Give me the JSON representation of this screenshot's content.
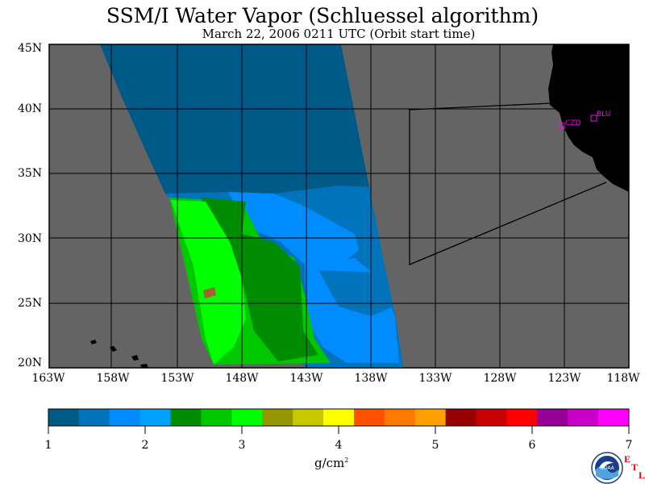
{
  "title": "SSM/I Water Vapor (Schluessel algorithm)",
  "subtitle": "March 22, 2006  0211 UTC  (Orbit start time)",
  "map": {
    "lat_labels": [
      "45N",
      "40N",
      "35N",
      "30N",
      "25N",
      "20N"
    ],
    "lon_labels": [
      "163W",
      "158W",
      "153W",
      "148W",
      "143W",
      "138W",
      "133W",
      "128W",
      "123W",
      "118W"
    ],
    "stations": [
      {
        "id": "CZD",
        "label": "CZD"
      },
      {
        "id": "BLU",
        "label": "BLU"
      }
    ],
    "colors": {
      "background": "#646464",
      "land": "#000000",
      "grid": "#000000",
      "station": "#ff00ff"
    }
  },
  "colorbar": {
    "tick_labels": [
      "1",
      "2",
      "3",
      "4",
      "5",
      "6",
      "7"
    ],
    "units_base": "g/cm",
    "units_sup": "2",
    "colors": [
      "#005a87",
      "#0073bd",
      "#008cff",
      "#00a0ff",
      "#008c00",
      "#00c800",
      "#00ff00",
      "#969600",
      "#c8c800",
      "#ffff00",
      "#ff5000",
      "#ff7800",
      "#ffa000",
      "#960000",
      "#c80000",
      "#ff0000",
      "#960096",
      "#c800c8",
      "#ff00ff"
    ]
  },
  "logo": {
    "label": "NOAA",
    "mark": [
      "E",
      "T",
      "L"
    ]
  }
}
